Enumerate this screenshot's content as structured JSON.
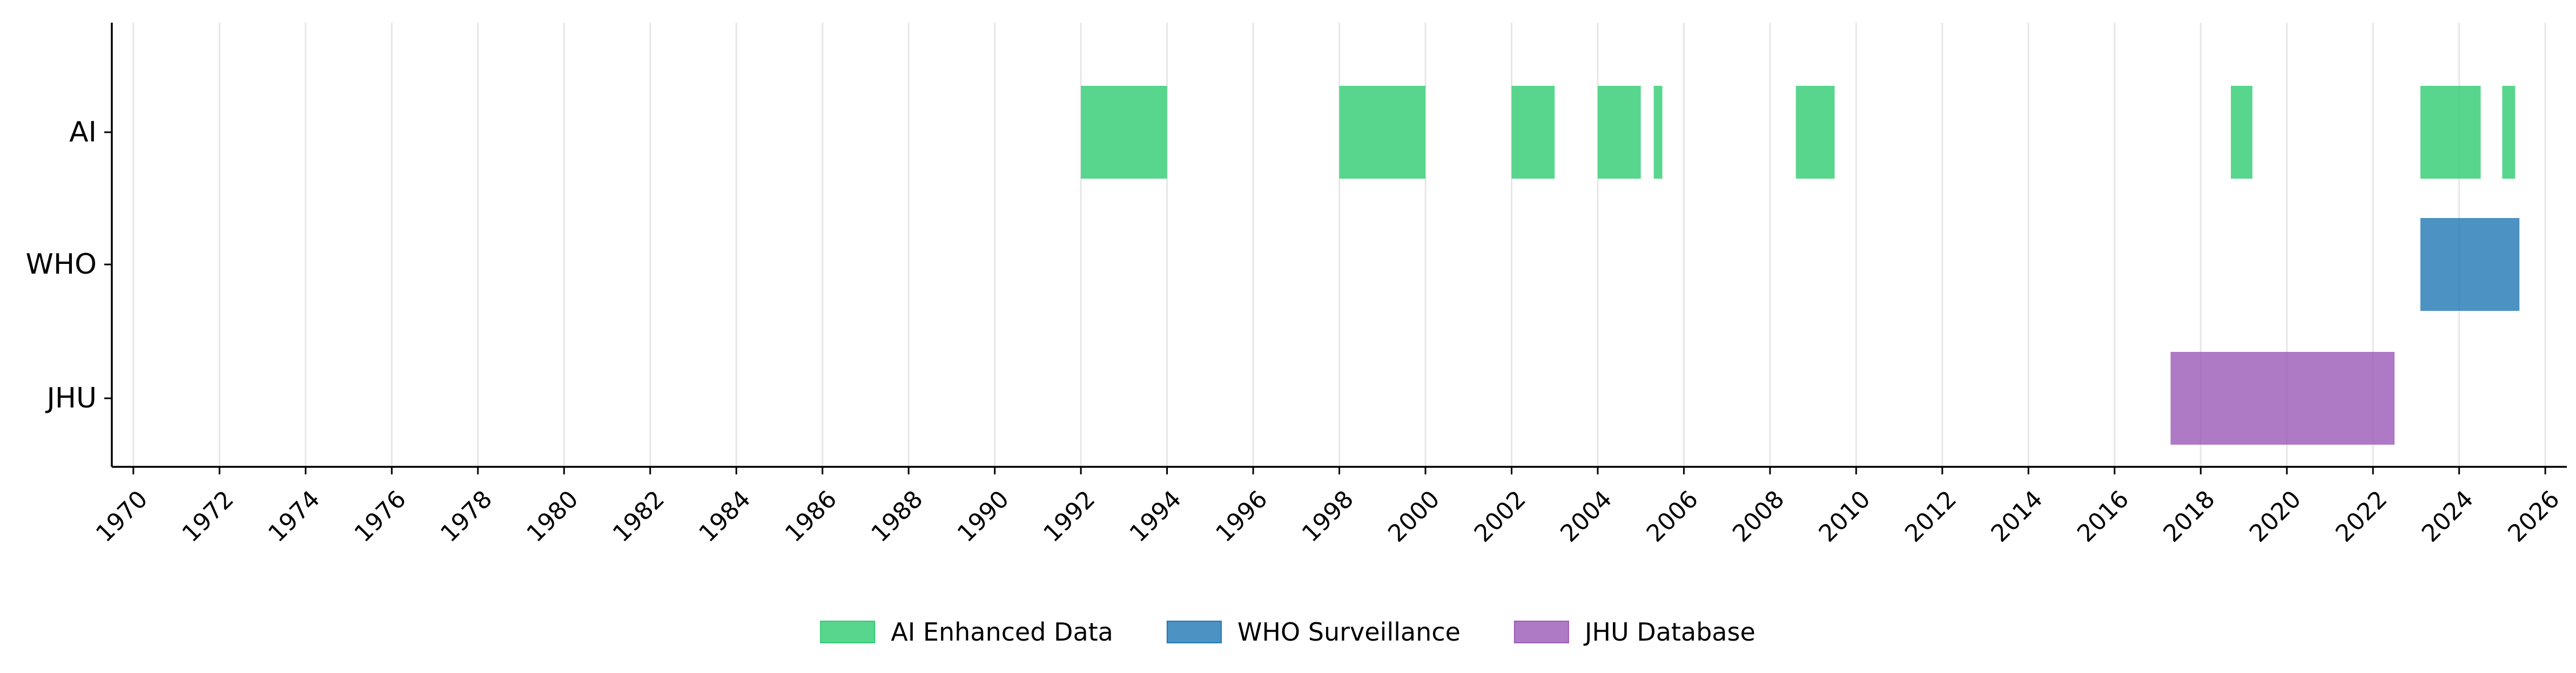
{
  "chart_data": {
    "type": "timeline",
    "categories": [
      "AI",
      "WHO",
      "JHU"
    ],
    "xlim": [
      1969.5,
      2026.5
    ],
    "xticks": [
      "1970",
      "1972",
      "1974",
      "1976",
      "1978",
      "1980",
      "1982",
      "1984",
      "1986",
      "1988",
      "1990",
      "1992",
      "1994",
      "1996",
      "1998",
      "2000",
      "2002",
      "2004",
      "2006",
      "2008",
      "2010",
      "2012",
      "2014",
      "2016",
      "2018",
      "2020",
      "2022",
      "2024",
      "2026"
    ],
    "grid": "x",
    "legend_position": "bottom-center",
    "series": [
      {
        "name": "AI Enhanced Data",
        "category": "AI",
        "color": "#2ecc71",
        "intervals": [
          [
            1992.0,
            1994.0
          ],
          [
            1998.0,
            2000.0
          ],
          [
            2002.0,
            2003.0
          ],
          [
            2004.0,
            2005.0
          ],
          [
            2005.3,
            2005.5
          ],
          [
            2008.6,
            2009.5
          ],
          [
            2018.7,
            2019.2
          ],
          [
            2023.1,
            2024.5
          ],
          [
            2025.0,
            2025.3
          ]
        ]
      },
      {
        "name": "WHO Surveillance",
        "category": "WHO",
        "color": "#1f77b4",
        "intervals": [
          [
            2023.1,
            2025.4
          ]
        ]
      },
      {
        "name": "JHU Database",
        "category": "JHU",
        "color": "#9b59b6",
        "intervals": [
          [
            2017.3,
            2022.5
          ]
        ]
      }
    ]
  }
}
